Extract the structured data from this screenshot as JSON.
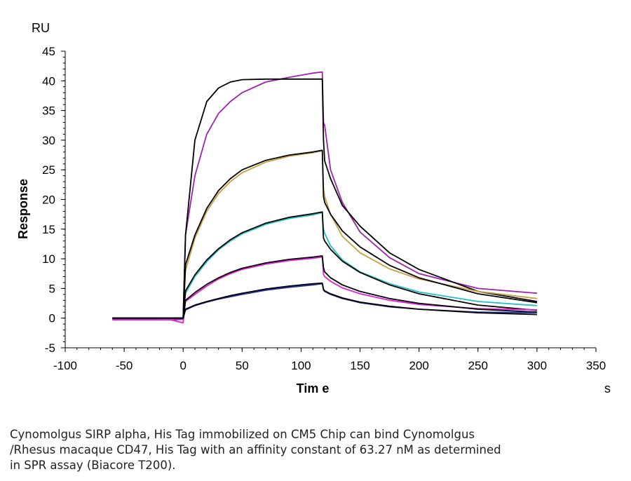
{
  "chart_data": {
    "type": "line",
    "xlabel": "Tim e",
    "ylabel": "Response",
    "x_unit": "s",
    "y_unit": "RU",
    "xlim": [
      -100,
      350
    ],
    "ylim": [
      -5,
      45
    ],
    "x_ticks": [
      -100,
      -50,
      0,
      50,
      100,
      150,
      200,
      250,
      300,
      350
    ],
    "y_ticks": [
      -5,
      0,
      5,
      10,
      15,
      20,
      25,
      30,
      35,
      40,
      45
    ],
    "grid": false,
    "series": [
      {
        "color": "#a020b0",
        "x": [
          -60,
          -10,
          0,
          2,
          10,
          20,
          30,
          40,
          50,
          70,
          90,
          110,
          118,
          119,
          120,
          125,
          135,
          150,
          175,
          200,
          250,
          300
        ],
        "y": [
          -0.2,
          -0.3,
          -0.2,
          14,
          24,
          31,
          34.5,
          36.5,
          38,
          39.8,
          40.6,
          41.3,
          41.5,
          33,
          32.5,
          25,
          19.5,
          14.5,
          10.2,
          7.5,
          5,
          4.2
        ]
      },
      {
        "color": "#000000",
        "x": [
          -60,
          -10,
          0,
          2,
          10,
          20,
          30,
          40,
          50,
          70,
          90,
          110,
          118,
          119,
          120,
          125,
          135,
          150,
          175,
          200,
          250,
          300
        ],
        "y": [
          0,
          0,
          0,
          14,
          30,
          36.5,
          38.8,
          39.8,
          40.2,
          40.3,
          40.3,
          40.3,
          40.3,
          30,
          26.5,
          23.5,
          19,
          15.5,
          11,
          8.2,
          4.5,
          2.8
        ]
      },
      {
        "color": "#c8a040",
        "x": [
          -60,
          -10,
          0,
          2,
          10,
          20,
          30,
          40,
          50,
          70,
          90,
          110,
          118,
          119,
          120,
          125,
          135,
          150,
          175,
          200,
          250,
          300
        ],
        "y": [
          0,
          0,
          0,
          8,
          13.5,
          18,
          21,
          23,
          24.5,
          26.3,
          27.3,
          27.9,
          28.2,
          22,
          20.5,
          17.5,
          13.8,
          11,
          8.3,
          6.6,
          4.5,
          3.3
        ]
      },
      {
        "color": "#000000",
        "x": [
          -60,
          -10,
          0,
          2,
          10,
          20,
          30,
          40,
          50,
          70,
          90,
          110,
          118,
          119,
          120,
          125,
          135,
          150,
          175,
          200,
          250,
          300
        ],
        "y": [
          0,
          0,
          0,
          9,
          14,
          18.5,
          21.5,
          23.5,
          25,
          26.6,
          27.5,
          28,
          28.3,
          20.5,
          19.5,
          17.5,
          14.7,
          12,
          8.9,
          6.8,
          4.1,
          2.6
        ]
      },
      {
        "color": "#20c0c8",
        "x": [
          -60,
          -10,
          0,
          2,
          10,
          20,
          30,
          40,
          50,
          70,
          90,
          110,
          118,
          119,
          120,
          125,
          135,
          150,
          175,
          200,
          250,
          300
        ],
        "y": [
          0,
          0,
          0,
          4.2,
          7,
          9.5,
          11.5,
          13,
          14.2,
          15.8,
          16.8,
          17.4,
          17.8,
          15,
          14.3,
          12.2,
          9.8,
          7.8,
          5.8,
          4.4,
          2.8,
          2.1
        ]
      },
      {
        "color": "#000000",
        "x": [
          -60,
          -10,
          0,
          2,
          10,
          20,
          30,
          40,
          50,
          70,
          90,
          110,
          118,
          119,
          120,
          125,
          135,
          150,
          175,
          200,
          250,
          300
        ],
        "y": [
          0,
          0,
          0,
          4.6,
          7.3,
          9.8,
          11.7,
          13.2,
          14.4,
          16,
          17,
          17.6,
          17.9,
          13.5,
          13,
          11.6,
          9.6,
          7.7,
          5.6,
          4.1,
          2.2,
          1.3
        ]
      },
      {
        "color": "#e020d8",
        "x": [
          -60,
          -10,
          0,
          2,
          10,
          20,
          30,
          40,
          50,
          70,
          90,
          110,
          118,
          119,
          120,
          125,
          135,
          150,
          175,
          200,
          250,
          300
        ],
        "y": [
          -0.3,
          -0.3,
          -0.8,
          2.8,
          4,
          5.4,
          6.6,
          7.5,
          8.2,
          9.1,
          9.7,
          10.1,
          10.3,
          7.4,
          7,
          6.2,
          5.1,
          4.1,
          3,
          2.3,
          1.6,
          1.4
        ]
      },
      {
        "color": "#000000",
        "x": [
          -60,
          -10,
          0,
          2,
          10,
          20,
          30,
          40,
          50,
          70,
          90,
          110,
          118,
          119,
          120,
          125,
          135,
          150,
          175,
          200,
          250,
          300
        ],
        "y": [
          0,
          0,
          0,
          3,
          4.3,
          5.7,
          6.8,
          7.7,
          8.4,
          9.3,
          9.9,
          10.3,
          10.5,
          8.5,
          7.8,
          6.8,
          5.6,
          4.5,
          3.3,
          2.5,
          1.5,
          1
        ]
      },
      {
        "color": "#2030a0",
        "x": [
          -60,
          -10,
          0,
          2,
          10,
          20,
          30,
          40,
          50,
          70,
          90,
          110,
          118,
          119,
          120,
          125,
          135,
          150,
          175,
          200,
          250,
          300
        ],
        "y": [
          0,
          0,
          0,
          1.4,
          2.1,
          2.7,
          3.2,
          3.6,
          4,
          4.7,
          5.2,
          5.6,
          5.8,
          4.7,
          4.5,
          4,
          3.3,
          2.6,
          1.9,
          1.5,
          1,
          0.9
        ]
      },
      {
        "color": "#000000",
        "x": [
          -60,
          -10,
          0,
          2,
          10,
          20,
          30,
          40,
          50,
          70,
          90,
          110,
          118,
          119,
          120,
          125,
          135,
          150,
          175,
          200,
          250,
          300
        ],
        "y": [
          0,
          0,
          0,
          1.5,
          2.2,
          2.8,
          3.3,
          3.8,
          4.2,
          4.9,
          5.4,
          5.8,
          5.9,
          4.9,
          4.6,
          4.1,
          3.4,
          2.7,
          2,
          1.5,
          0.9,
          0.6
        ]
      }
    ]
  },
  "caption": "Cynomolgus SIRP alpha, His Tag immobilized on CM5 Chip can bind Cynomolgus\n/Rhesus macaque CD47, His Tag with an affinity constant of 63.27 nM as determined\nin SPR assay (Biacore T200)."
}
